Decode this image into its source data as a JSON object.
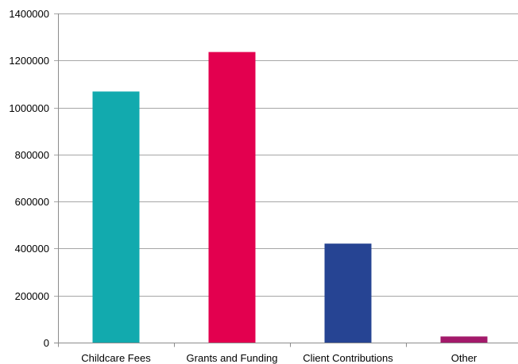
{
  "chart_data": {
    "type": "bar",
    "title": "",
    "xlabel": "",
    "ylabel": "",
    "categories": [
      "Childcare Fees",
      "Grants and Funding",
      "Client Contributions",
      "Other"
    ],
    "values": [
      1068000,
      1236000,
      421000,
      26000
    ],
    "colors": [
      "#12aaae",
      "#e3004f",
      "#264493",
      "#a3196a"
    ],
    "ylim": [
      0,
      1400000
    ],
    "yticks": [
      0,
      200000,
      400000,
      600000,
      800000,
      1000000,
      1200000,
      1400000
    ],
    "ytick_labels": [
      "0",
      "200000",
      "400000",
      "600000",
      "800000",
      "1000000",
      "1200000",
      "1400000"
    ],
    "grid": true,
    "legend": "none"
  }
}
